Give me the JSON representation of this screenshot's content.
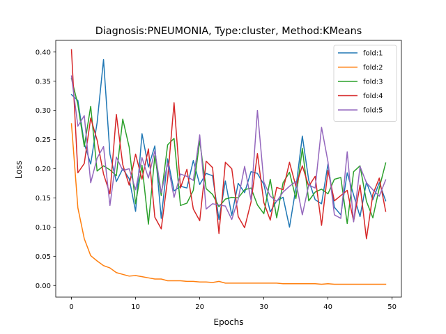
{
  "chart_data": {
    "type": "line",
    "title": "Diagnosis:PNEUMONIA, Type:cluster, Method:KMeans",
    "xlabel": "Epochs",
    "ylabel": "Loss",
    "xlim": [
      -2.45,
      51.45
    ],
    "ylim": [
      -0.02,
      0.42
    ],
    "xticks": [
      0,
      10,
      20,
      30,
      40,
      50
    ],
    "yticks": [
      0.0,
      0.05,
      0.1,
      0.15,
      0.2,
      0.25,
      0.3,
      0.35,
      0.4
    ],
    "ytick_labels": [
      "0.00",
      "0.05",
      "0.10",
      "0.15",
      "0.20",
      "0.25",
      "0.30",
      "0.35",
      "0.40"
    ],
    "legend_position": "top-right",
    "x": [
      0,
      1,
      2,
      3,
      4,
      5,
      6,
      7,
      8,
      9,
      10,
      11,
      12,
      13,
      14,
      15,
      16,
      17,
      18,
      19,
      20,
      21,
      22,
      23,
      24,
      25,
      26,
      27,
      28,
      29,
      30,
      31,
      32,
      33,
      34,
      35,
      36,
      37,
      38,
      39,
      40,
      41,
      42,
      43,
      44,
      45,
      46,
      47,
      48,
      49
    ],
    "series": [
      {
        "name": "fold:1",
        "color": "#1f77b4",
        "values": [
          0.327,
          0.317,
          0.243,
          0.208,
          0.279,
          0.387,
          0.225,
          0.178,
          0.2,
          0.183,
          0.127,
          0.26,
          0.203,
          0.239,
          0.115,
          0.217,
          0.162,
          0.17,
          0.167,
          0.214,
          0.173,
          0.192,
          0.188,
          0.113,
          0.179,
          0.12,
          0.175,
          0.159,
          0.195,
          0.192,
          0.173,
          0.126,
          0.145,
          0.151,
          0.1,
          0.167,
          0.256,
          0.18,
          0.147,
          0.14,
          0.208,
          0.134,
          0.121,
          0.193,
          0.155,
          0.118,
          0.177,
          0.147,
          0.176,
          0.145
        ]
      },
      {
        "name": "fold:2",
        "color": "#ff7f0e",
        "values": [
          0.277,
          0.133,
          0.08,
          0.051,
          0.042,
          0.034,
          0.03,
          0.022,
          0.019,
          0.016,
          0.017,
          0.015,
          0.013,
          0.011,
          0.011,
          0.008,
          0.008,
          0.008,
          0.007,
          0.007,
          0.006,
          0.006,
          0.005,
          0.007,
          0.004,
          0.004,
          0.004,
          0.004,
          0.004,
          0.004,
          0.004,
          0.004,
          0.004,
          0.003,
          0.003,
          0.003,
          0.003,
          0.003,
          0.003,
          0.002,
          0.003,
          0.002,
          0.002,
          0.002,
          0.002,
          0.002,
          0.002,
          0.002,
          0.002,
          0.002
        ]
      },
      {
        "name": "fold:3",
        "color": "#2ca02c",
        "values": [
          0.355,
          0.31,
          0.238,
          0.307,
          0.196,
          0.205,
          0.198,
          0.188,
          0.285,
          0.237,
          0.14,
          0.206,
          0.105,
          0.222,
          0.154,
          0.241,
          0.252,
          0.137,
          0.141,
          0.163,
          0.248,
          0.166,
          0.156,
          0.135,
          0.148,
          0.151,
          0.15,
          0.164,
          0.167,
          0.138,
          0.123,
          0.182,
          0.116,
          0.176,
          0.194,
          0.149,
          0.235,
          0.145,
          0.16,
          0.165,
          0.157,
          0.182,
          0.185,
          0.106,
          0.195,
          0.205,
          0.144,
          0.116,
          0.167,
          0.21
        ]
      },
      {
        "name": "fold:4",
        "color": "#d62728",
        "values": [
          0.404,
          0.193,
          0.209,
          0.287,
          0.249,
          0.191,
          0.157,
          0.293,
          0.207,
          0.172,
          0.225,
          0.182,
          0.234,
          0.117,
          0.097,
          0.183,
          0.313,
          0.167,
          0.199,
          0.131,
          0.111,
          0.213,
          0.202,
          0.089,
          0.211,
          0.2,
          0.118,
          0.099,
          0.143,
          0.226,
          0.142,
          0.112,
          0.168,
          0.164,
          0.211,
          0.17,
          0.205,
          0.17,
          0.187,
          0.103,
          0.197,
          0.145,
          0.154,
          0.163,
          0.11,
          0.172,
          0.08,
          0.156,
          0.184,
          0.127
        ]
      },
      {
        "name": "fold:5",
        "color": "#9467bd",
        "values": [
          0.359,
          0.273,
          0.291,
          0.176,
          0.218,
          0.238,
          0.137,
          0.22,
          0.197,
          0.2,
          0.164,
          0.219,
          0.184,
          0.231,
          0.159,
          0.209,
          0.151,
          0.191,
          0.187,
          0.18,
          0.258,
          0.131,
          0.14,
          0.138,
          0.136,
          0.113,
          0.148,
          0.204,
          0.146,
          0.3,
          0.177,
          0.153,
          0.144,
          0.16,
          0.17,
          0.178,
          0.121,
          0.172,
          0.167,
          0.271,
          0.212,
          0.121,
          0.115,
          0.229,
          0.109,
          0.204,
          0.176,
          0.164,
          0.153,
          0.181
        ]
      }
    ]
  }
}
